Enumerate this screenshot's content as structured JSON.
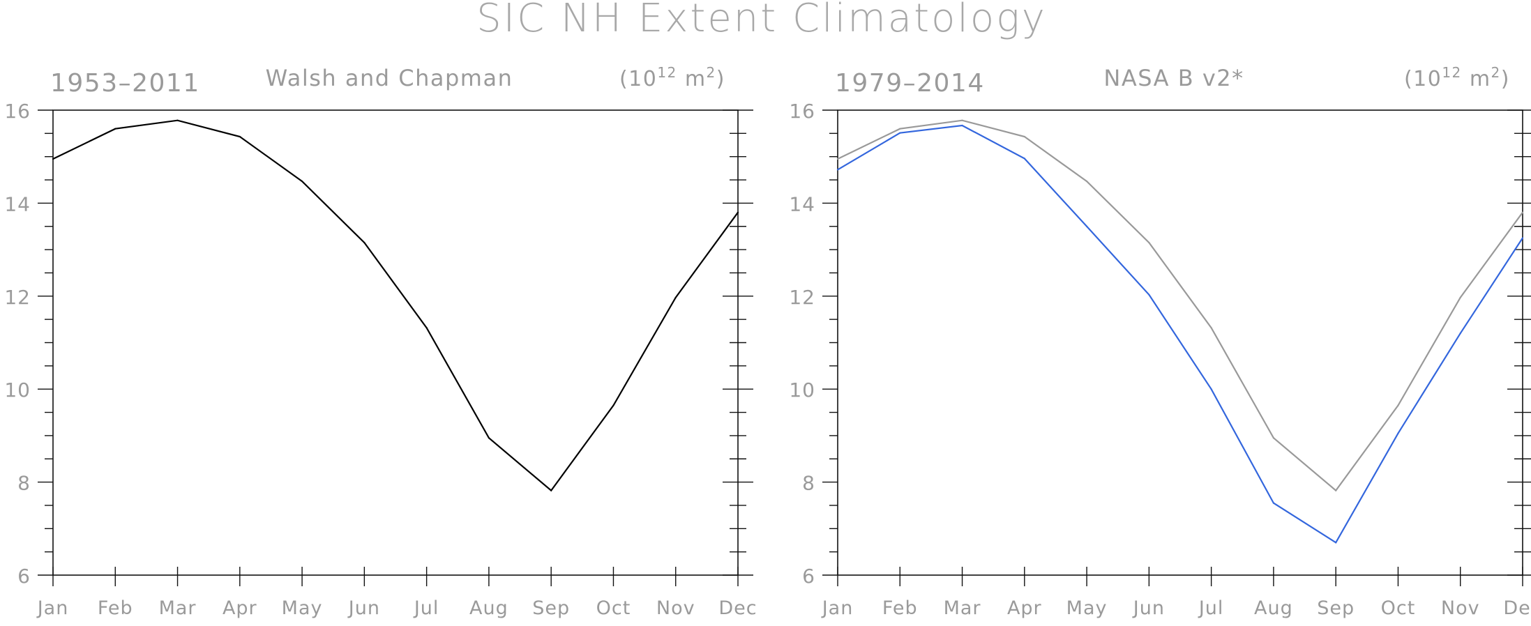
{
  "figure": {
    "title": "SIC NH Extent Climatology"
  },
  "chart_data": [
    {
      "type": "line",
      "left_label": "1953–2011",
      "title": "Walsh and Chapman",
      "unit_base": "(10",
      "unit_exp": "12",
      "unit_rest": " m",
      "unit_exp2": "2",
      "unit_close": ")",
      "categories": [
        "Jan",
        "Feb",
        "Mar",
        "Apr",
        "May",
        "Jun",
        "Jul",
        "Aug",
        "Sep",
        "Oct",
        "Nov",
        "Dec"
      ],
      "ylim": [
        6,
        16
      ],
      "yticks": [
        6,
        8,
        10,
        12,
        14,
        16
      ],
      "grid": false,
      "series": [
        {
          "color": "#000000",
          "values": [
            14.95,
            15.6,
            15.78,
            15.43,
            14.47,
            13.15,
            11.32,
            8.95,
            7.82,
            9.65,
            11.97,
            13.8
          ]
        }
      ]
    },
    {
      "type": "line",
      "left_label": "1979–2014",
      "title": "NASA B v2*",
      "unit_base": "(10",
      "unit_exp": "12",
      "unit_rest": " m",
      "unit_exp2": "2",
      "unit_close": ")",
      "categories": [
        "Jan",
        "Feb",
        "Mar",
        "Apr",
        "May",
        "Jun",
        "Jul",
        "Aug",
        "Sep",
        "Oct",
        "Nov",
        "Dec"
      ],
      "ylim": [
        6,
        16
      ],
      "yticks": [
        6,
        8,
        10,
        12,
        14,
        16
      ],
      "grid": false,
      "series": [
        {
          "color": "#999999",
          "values": [
            14.95,
            15.6,
            15.78,
            15.43,
            14.47,
            13.15,
            11.32,
            8.95,
            7.82,
            9.65,
            11.97,
            13.8
          ]
        },
        {
          "color": "#3366dd",
          "values": [
            14.72,
            15.51,
            15.67,
            14.96,
            13.5,
            12.03,
            10.0,
            7.55,
            6.7,
            9.05,
            11.2,
            13.25
          ]
        }
      ]
    }
  ]
}
